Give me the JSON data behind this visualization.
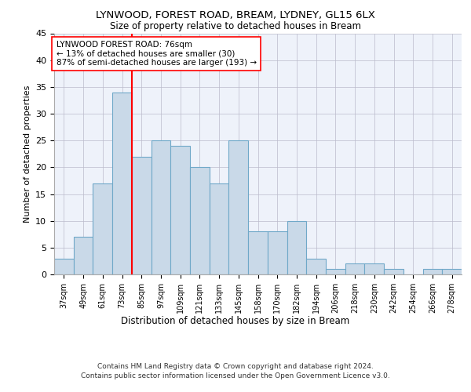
{
  "title_line1": "LYNWOOD, FOREST ROAD, BREAM, LYDNEY, GL15 6LX",
  "title_line2": "Size of property relative to detached houses in Bream",
  "xlabel": "Distribution of detached houses by size in Bream",
  "ylabel": "Number of detached properties",
  "categories": [
    "37sqm",
    "49sqm",
    "61sqm",
    "73sqm",
    "85sqm",
    "97sqm",
    "109sqm",
    "121sqm",
    "133sqm",
    "145sqm",
    "158sqm",
    "170sqm",
    "182sqm",
    "194sqm",
    "206sqm",
    "218sqm",
    "230sqm",
    "242sqm",
    "254sqm",
    "266sqm",
    "278sqm"
  ],
  "values": [
    3,
    7,
    17,
    34,
    22,
    25,
    24,
    20,
    17,
    25,
    8,
    8,
    10,
    3,
    1,
    2,
    2,
    1,
    0,
    1,
    1
  ],
  "bar_color": "#c9d9e8",
  "bar_edge_color": "#6fa8c8",
  "bar_linewidth": 0.8,
  "vline_x_index": 3,
  "vline_color": "red",
  "vline_linewidth": 1.5,
  "ylim": [
    0,
    45
  ],
  "yticks": [
    0,
    5,
    10,
    15,
    20,
    25,
    30,
    35,
    40,
    45
  ],
  "annotation_text": "LYNWOOD FOREST ROAD: 76sqm\n← 13% of detached houses are smaller (30)\n87% of semi-detached houses are larger (193) →",
  "annotation_box_color": "white",
  "annotation_box_edge": "red",
  "annotation_fontsize": 7.5,
  "footer_line1": "Contains HM Land Registry data © Crown copyright and database right 2024.",
  "footer_line2": "Contains public sector information licensed under the Open Government Licence v3.0.",
  "background_color": "#eef2fa",
  "grid_color": "#bbbbcc"
}
